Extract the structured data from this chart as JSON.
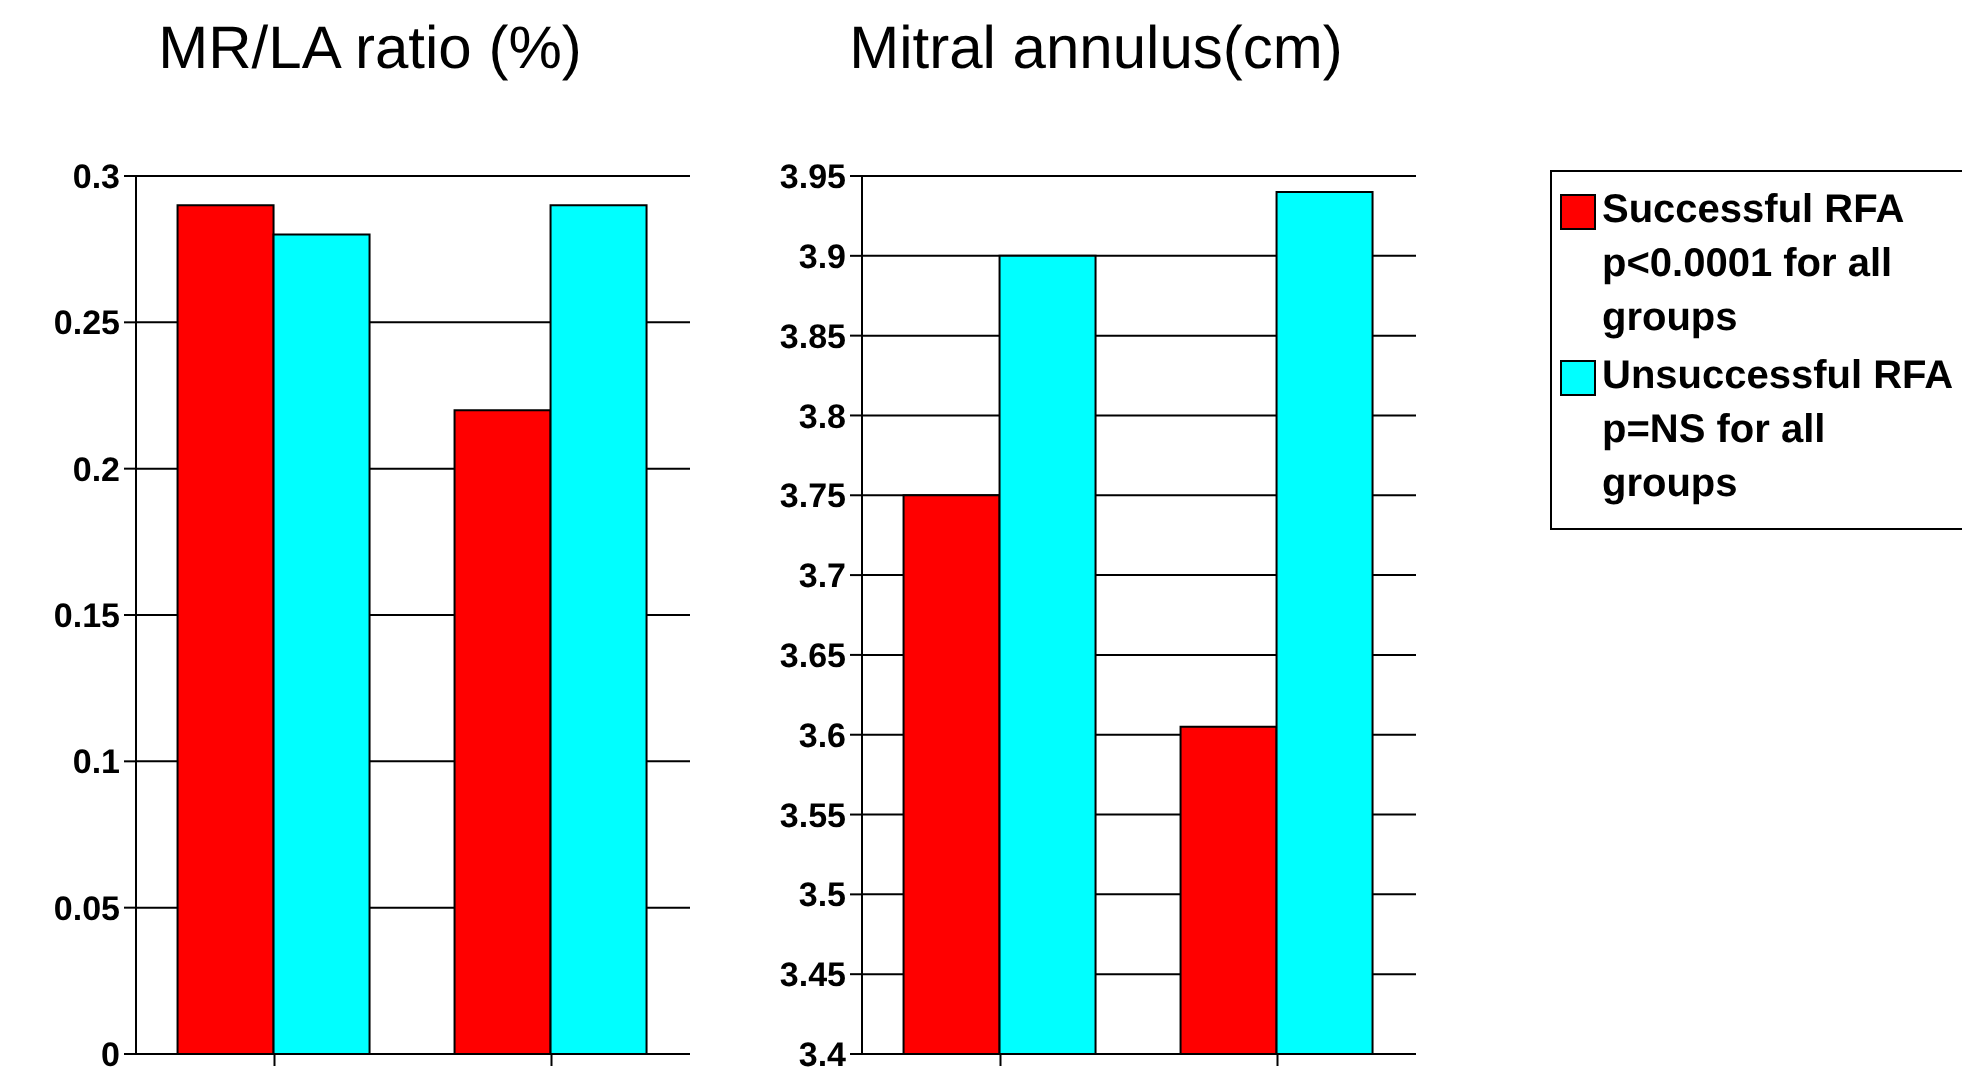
{
  "chart_data": [
    {
      "type": "bar",
      "title": "MR/LA ratio (%)",
      "categories": [
        null,
        null
      ],
      "series": [
        {
          "color": "#ff0000",
          "values": [
            0.29,
            0.22
          ]
        },
        {
          "color": "#00ffff",
          "values": [
            0.28,
            0.29
          ]
        }
      ],
      "ylim": [
        0,
        0.3
      ],
      "yticks": [
        0,
        0.05,
        0.1,
        0.15,
        0.2,
        0.25,
        0.3
      ],
      "grid": "y"
    },
    {
      "type": "bar",
      "title": "Mitral annulus(cm)",
      "categories": [
        null,
        null
      ],
      "series": [
        {
          "name": "Successful RFA p<0.0001 for all groups",
          "color": "#ff0000",
          "values": [
            3.75,
            3.605
          ]
        },
        {
          "name": "Unsuccessful RFA p=NS for all groups",
          "color": "#00ffff",
          "values": [
            3.9,
            3.94
          ]
        }
      ],
      "ylim": [
        3.4,
        3.95
      ],
      "yticks": [
        3.4,
        3.45,
        3.5,
        3.55,
        3.6,
        3.65,
        3.7,
        3.75,
        3.8,
        3.85,
        3.9,
        3.95
      ],
      "grid": "y",
      "legend": "right"
    }
  ]
}
